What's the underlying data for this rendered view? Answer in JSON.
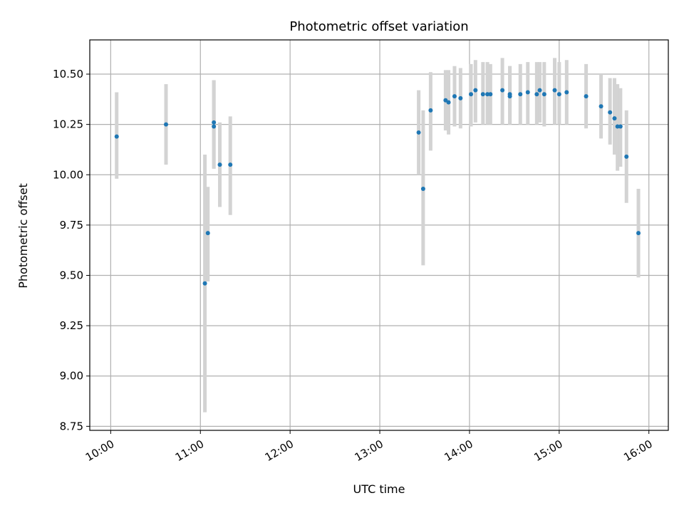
{
  "chart_data": {
    "type": "scatter",
    "title": "Photometric offset variation",
    "xlabel": "UTC time",
    "ylabel": "Photometric offset",
    "xlim": [
      "09:46",
      "16:13"
    ],
    "ylim": [
      8.73,
      10.67
    ],
    "x_ticks": [
      "10:00",
      "11:00",
      "12:00",
      "13:00",
      "14:00",
      "15:00",
      "16:00"
    ],
    "y_ticks": [
      8.75,
      9.0,
      9.25,
      9.5,
      9.75,
      10.0,
      10.25,
      10.5
    ],
    "y_tick_labels": [
      "8.75",
      "9.00",
      "9.25",
      "9.50",
      "9.75",
      "10.00",
      "10.25",
      "10.50"
    ],
    "grid": true,
    "point_color": "#1f77b4",
    "errorbar_color": "#d3d3d3",
    "points": [
      {
        "x": "10:04",
        "y": 10.19,
        "ylow": 9.98,
        "yhigh": 10.41
      },
      {
        "x": "10:37",
        "y": 10.25,
        "ylow": 10.05,
        "yhigh": 10.45
      },
      {
        "x": "11:03",
        "y": 9.46,
        "ylow": 8.82,
        "yhigh": 10.1
      },
      {
        "x": "11:05",
        "y": 9.71,
        "ylow": 9.47,
        "yhigh": 9.94
      },
      {
        "x": "11:09",
        "y": 10.26,
        "ylow": 10.03,
        "yhigh": 10.47
      },
      {
        "x": "11:09",
        "y": 10.24,
        "ylow": 10.03,
        "yhigh": 10.47
      },
      {
        "x": "11:13",
        "y": 10.05,
        "ylow": 9.84,
        "yhigh": 10.26
      },
      {
        "x": "11:20",
        "y": 10.05,
        "ylow": 9.8,
        "yhigh": 10.29
      },
      {
        "x": "13:26",
        "y": 10.21,
        "ylow": 10.0,
        "yhigh": 10.42
      },
      {
        "x": "13:29",
        "y": 9.93,
        "ylow": 9.55,
        "yhigh": 10.32
      },
      {
        "x": "13:34",
        "y": 10.32,
        "ylow": 10.12,
        "yhigh": 10.51
      },
      {
        "x": "13:44",
        "y": 10.37,
        "ylow": 10.22,
        "yhigh": 10.52
      },
      {
        "x": "13:46",
        "y": 10.36,
        "ylow": 10.2,
        "yhigh": 10.52
      },
      {
        "x": "13:50",
        "y": 10.39,
        "ylow": 10.24,
        "yhigh": 10.54
      },
      {
        "x": "13:54",
        "y": 10.38,
        "ylow": 10.23,
        "yhigh": 10.53
      },
      {
        "x": "14:01",
        "y": 10.4,
        "ylow": 10.24,
        "yhigh": 10.55
      },
      {
        "x": "14:04",
        "y": 10.42,
        "ylow": 10.26,
        "yhigh": 10.57
      },
      {
        "x": "14:09",
        "y": 10.4,
        "ylow": 10.25,
        "yhigh": 10.56
      },
      {
        "x": "14:12",
        "y": 10.4,
        "ylow": 10.25,
        "yhigh": 10.56
      },
      {
        "x": "14:14",
        "y": 10.4,
        "ylow": 10.25,
        "yhigh": 10.55
      },
      {
        "x": "14:22",
        "y": 10.42,
        "ylow": 10.25,
        "yhigh": 10.58
      },
      {
        "x": "14:27",
        "y": 10.4,
        "ylow": 10.25,
        "yhigh": 10.54
      },
      {
        "x": "14:27",
        "y": 10.39,
        "ylow": 10.25,
        "yhigh": 10.54
      },
      {
        "x": "14:34",
        "y": 10.4,
        "ylow": 10.25,
        "yhigh": 10.55
      },
      {
        "x": "14:39",
        "y": 10.41,
        "ylow": 10.25,
        "yhigh": 10.56
      },
      {
        "x": "14:45",
        "y": 10.4,
        "ylow": 10.25,
        "yhigh": 10.56
      },
      {
        "x": "14:47",
        "y": 10.42,
        "ylow": 10.26,
        "yhigh": 10.56
      },
      {
        "x": "14:50",
        "y": 10.4,
        "ylow": 10.24,
        "yhigh": 10.56
      },
      {
        "x": "14:57",
        "y": 10.42,
        "ylow": 10.25,
        "yhigh": 10.58
      },
      {
        "x": "15:00",
        "y": 10.4,
        "ylow": 10.25,
        "yhigh": 10.56
      },
      {
        "x": "15:05",
        "y": 10.41,
        "ylow": 10.25,
        "yhigh": 10.57
      },
      {
        "x": "15:18",
        "y": 10.39,
        "ylow": 10.23,
        "yhigh": 10.55
      },
      {
        "x": "15:28",
        "y": 10.34,
        "ylow": 10.18,
        "yhigh": 10.5
      },
      {
        "x": "15:34",
        "y": 10.31,
        "ylow": 10.15,
        "yhigh": 10.48
      },
      {
        "x": "15:37",
        "y": 10.28,
        "ylow": 10.1,
        "yhigh": 10.48
      },
      {
        "x": "15:39",
        "y": 10.24,
        "ylow": 10.02,
        "yhigh": 10.45
      },
      {
        "x": "15:41",
        "y": 10.24,
        "ylow": 10.04,
        "yhigh": 10.43
      },
      {
        "x": "15:45",
        "y": 10.09,
        "ylow": 9.86,
        "yhigh": 10.32
      },
      {
        "x": "15:53",
        "y": 9.71,
        "ylow": 9.49,
        "yhigh": 9.93
      }
    ]
  }
}
